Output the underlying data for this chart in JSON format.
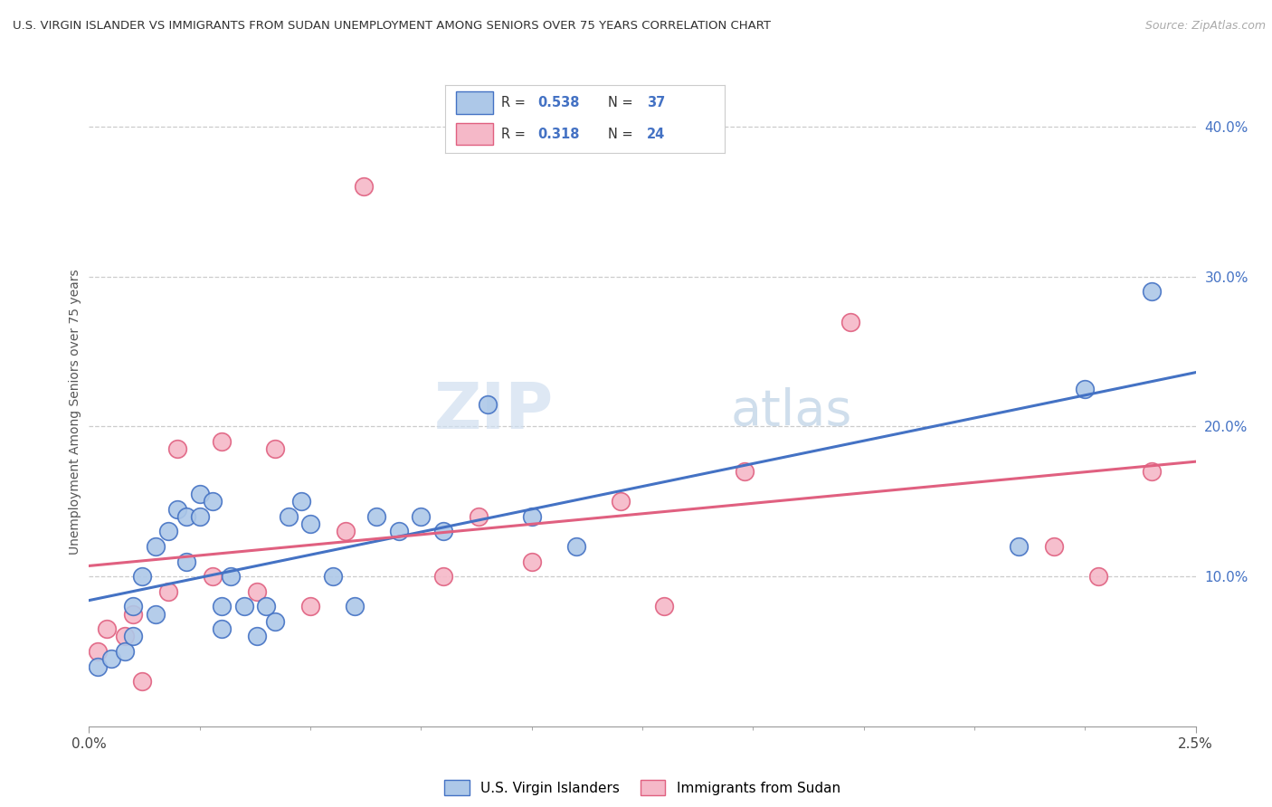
{
  "title": "U.S. VIRGIN ISLANDER VS IMMIGRANTS FROM SUDAN UNEMPLOYMENT AMONG SENIORS OVER 75 YEARS CORRELATION CHART",
  "source": "Source: ZipAtlas.com",
  "ylabel": "Unemployment Among Seniors over 75 years",
  "xlim": [
    0.0,
    0.025
  ],
  "ylim": [
    0.0,
    0.42
  ],
  "blue_R": "0.538",
  "blue_N": "37",
  "pink_R": "0.318",
  "pink_N": "24",
  "blue_color": "#adc8e8",
  "pink_color": "#f5b8c8",
  "blue_line_color": "#4472c4",
  "pink_line_color": "#e06080",
  "blue_scatter_x": [
    0.0002,
    0.0005,
    0.0008,
    0.001,
    0.001,
    0.0012,
    0.0015,
    0.0015,
    0.0018,
    0.002,
    0.0022,
    0.0022,
    0.0025,
    0.0025,
    0.0028,
    0.003,
    0.003,
    0.0032,
    0.0035,
    0.0038,
    0.004,
    0.0042,
    0.0045,
    0.0048,
    0.005,
    0.0055,
    0.006,
    0.0065,
    0.007,
    0.0075,
    0.008,
    0.009,
    0.01,
    0.011,
    0.021,
    0.0225,
    0.024
  ],
  "blue_scatter_y": [
    0.04,
    0.045,
    0.05,
    0.08,
    0.06,
    0.1,
    0.12,
    0.075,
    0.13,
    0.145,
    0.11,
    0.14,
    0.155,
    0.14,
    0.15,
    0.08,
    0.065,
    0.1,
    0.08,
    0.06,
    0.08,
    0.07,
    0.14,
    0.15,
    0.135,
    0.1,
    0.08,
    0.14,
    0.13,
    0.14,
    0.13,
    0.215,
    0.14,
    0.12,
    0.12,
    0.225,
    0.29
  ],
  "pink_scatter_x": [
    0.0002,
    0.0004,
    0.0008,
    0.001,
    0.0012,
    0.0018,
    0.002,
    0.0028,
    0.003,
    0.0038,
    0.0042,
    0.005,
    0.0058,
    0.0062,
    0.008,
    0.0088,
    0.01,
    0.012,
    0.013,
    0.0148,
    0.0172,
    0.0218,
    0.0228,
    0.024
  ],
  "pink_scatter_y": [
    0.05,
    0.065,
    0.06,
    0.075,
    0.03,
    0.09,
    0.185,
    0.1,
    0.19,
    0.09,
    0.185,
    0.08,
    0.13,
    0.36,
    0.1,
    0.14,
    0.11,
    0.15,
    0.08,
    0.17,
    0.27,
    0.12,
    0.1,
    0.17
  ],
  "background_color": "#ffffff",
  "grid_color": "#cccccc",
  "watermark_zip": "ZIP",
  "watermark_atlas": "atlas"
}
